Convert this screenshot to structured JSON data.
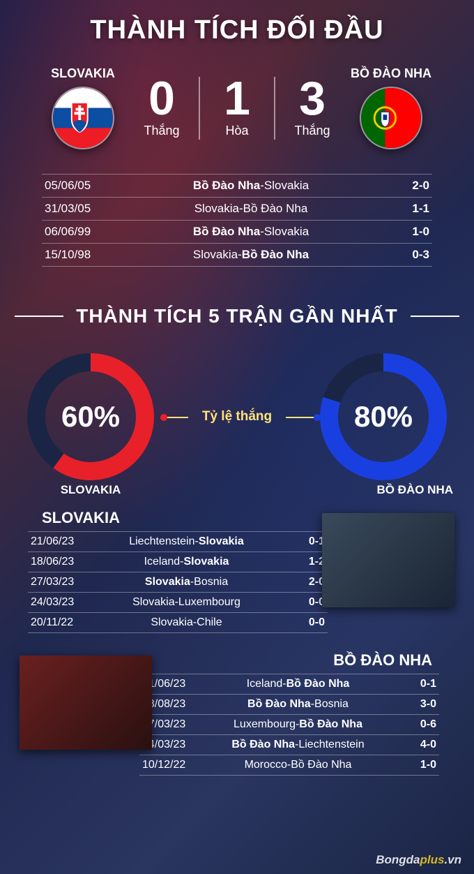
{
  "main_title": "THÀNH TÍCH ĐỐI ĐẦU",
  "team_a": {
    "name": "SLOVAKIA"
  },
  "team_b": {
    "name": "BỒ ĐÀO NHA"
  },
  "h2h_stats": {
    "a_wins": {
      "value": "0",
      "label": "Thắng"
    },
    "draws": {
      "value": "1",
      "label": "Hòa"
    },
    "b_wins": {
      "value": "3",
      "label": "Thắng"
    }
  },
  "h2h_matches": [
    {
      "date": "05/06/05",
      "home": "Bồ Đào Nha",
      "away": "Slovakia",
      "home_bold": true,
      "score": "2-0"
    },
    {
      "date": "31/03/05",
      "home": "Slovakia",
      "away": "Bồ Đào Nha",
      "home_bold": false,
      "score": "1-1"
    },
    {
      "date": "06/06/99",
      "home": "Bồ Đào Nha",
      "away": "Slovakia",
      "home_bold": true,
      "score": "1-0"
    },
    {
      "date": "15/10/98",
      "home": "Slovakia",
      "away": "Bồ Đào Nha",
      "home_bold": false,
      "away_bold": true,
      "score": "0-3"
    }
  ],
  "section2_title": "THÀNH TÍCH 5 TRẬN GẦN NHẤT",
  "winrate_label": "Tỷ lệ thắng",
  "donut_a": {
    "pct": 60,
    "pct_text": "60%",
    "name": "SLOVAKIA",
    "color_fill": "#e8202a",
    "color_track": "#1a2545",
    "stroke_width": 26
  },
  "donut_b": {
    "pct": 80,
    "pct_text": "80%",
    "name": "BỒ ĐÀO NHA",
    "color_fill": "#1a3fe0",
    "color_track": "#1a2545",
    "stroke_width": 26
  },
  "form_a": {
    "label": "SLOVAKIA",
    "rows": [
      {
        "date": "21/06/23",
        "home": "Liechtenstein",
        "away": "Slovakia",
        "away_bold": true,
        "score": "0-1"
      },
      {
        "date": "18/06/23",
        "home": "Iceland",
        "away": "Slovakia",
        "away_bold": true,
        "score": "1-2"
      },
      {
        "date": "27/03/23",
        "home": "Slovakia",
        "away": "Bosnia",
        "home_bold": true,
        "score": "2-0"
      },
      {
        "date": "24/03/23",
        "home": "Slovakia",
        "away": "Luxembourg",
        "score": "0-0"
      },
      {
        "date": "20/11/22",
        "home": "Slovakia",
        "away": "Chile",
        "score": "0-0"
      }
    ]
  },
  "form_b": {
    "label": "BỒ ĐÀO NHA",
    "rows": [
      {
        "date": "21/06/23",
        "home": "Iceland",
        "away": "Bồ Đào Nha",
        "away_bold": true,
        "score": "0-1"
      },
      {
        "date": "18/08/23",
        "home": "Bồ Đào Nha",
        "away": "Bosnia",
        "home_bold": true,
        "score": "3-0"
      },
      {
        "date": "27/03/23",
        "home": "Luxembourg",
        "away": "Bồ Đào Nha",
        "away_bold": true,
        "score": "0-6"
      },
      {
        "date": "24/03/23",
        "home": "Bồ Đào Nha",
        "away": "Liechtenstein",
        "home_bold": true,
        "score": "4-0"
      },
      {
        "date": "10/12/22",
        "home": "Morocco",
        "away": "Bồ Đào Nha",
        "score": "1-0"
      }
    ]
  },
  "watermark": {
    "pre": "Bongda",
    "hi": "plus",
    "post": ".vn"
  },
  "colors": {
    "accent_red": "#e8202a",
    "accent_blue": "#1a3fe0",
    "accent_yellow": "#ffe27a"
  }
}
